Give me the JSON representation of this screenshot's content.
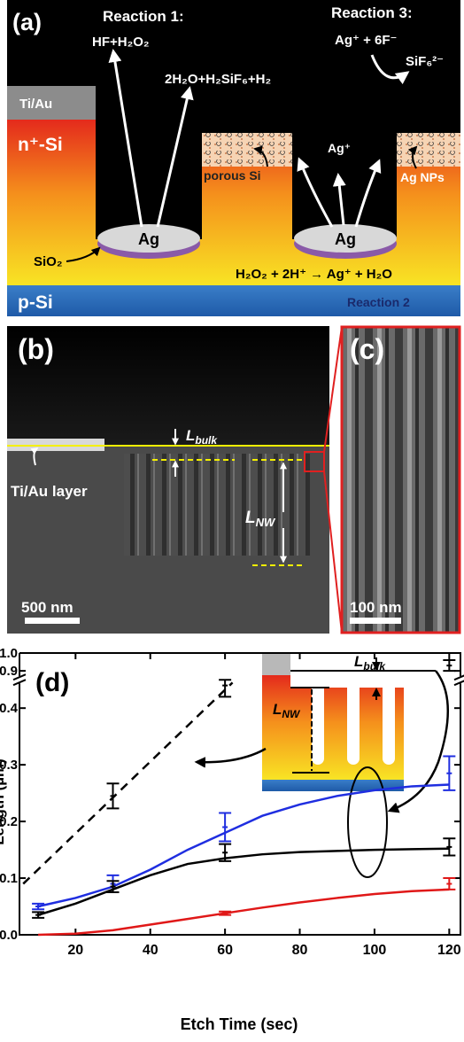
{
  "panel_a": {
    "label": "(a)",
    "reaction1_title": "Reaction 1:",
    "reaction1_in": "HF+H₂O₂",
    "reaction1_out": "2H₂O+H₂SiF₆+H₂",
    "reaction3_title": "Reaction 3:",
    "reaction3_in": "Ag⁺ + 6F⁻",
    "reaction3_out": "SiF₆²⁻",
    "tiau": "Ti/Au",
    "nsi": "n⁺-Si",
    "porous": "porous Si",
    "agplus": "Ag⁺",
    "agnps": "Ag NPs",
    "ag_left": "Ag",
    "ag_right": "Ag",
    "sio2": "SiO₂",
    "reaction2_eq": "H₂O₂ + 2H⁺ → Ag⁺ + H₂O",
    "reaction2_title": "Reaction 2",
    "psi": "p-Si"
  },
  "panel_b": {
    "label": "(b)",
    "lbulk": {
      "main": "L",
      "sub": "bulk"
    },
    "tiau_layer": "Ti/Au layer",
    "lnw": {
      "main": "L",
      "sub": "NW"
    },
    "scale": "500 nm"
  },
  "panel_c": {
    "label": "(c)",
    "scale": "100 nm"
  },
  "chart_data": {
    "type": "line",
    "panel_label": "(d)",
    "x_label": "Etch Time (sec)",
    "y_label": "Length (µm)",
    "xlim": [
      5,
      123
    ],
    "xticks": [
      20,
      40,
      60,
      80,
      100,
      120
    ],
    "ylim": [
      0,
      1.0
    ],
    "y_break": [
      0.45,
      0.85
    ],
    "yticks": [
      {
        "value": 0,
        "label": "0.0"
      },
      0.1,
      0.2,
      0.3,
      0.4,
      0.9,
      {
        "value": 1.0,
        "label": "1.0"
      }
    ],
    "inset": {
      "lbulk": {
        "main": "L",
        "sub": "bulk"
      },
      "lnw": {
        "main": "L",
        "sub": "NW"
      }
    },
    "series": [
      {
        "color": "#000000",
        "dash": true,
        "x": [
          30,
          60,
          120
        ],
        "values": [
          0.245,
          0.44,
          0.93
        ],
        "errors": [
          0.022,
          0.02,
          0.03
        ],
        "fit_x": [
          6,
          62
        ],
        "fit": [
          0.09,
          0.445
        ]
      },
      {
        "color": "#1f2ee0",
        "dash": false,
        "x": [
          10,
          30,
          60,
          120
        ],
        "values": [
          0.05,
          0.09,
          0.19,
          0.285
        ],
        "errors": [
          0.005,
          0.015,
          0.025,
          0.03
        ],
        "fit_x": [
          10,
          20,
          30,
          40,
          50,
          60,
          70,
          80,
          90,
          100,
          110,
          120
        ],
        "fit": [
          0.05,
          0.065,
          0.085,
          0.115,
          0.15,
          0.18,
          0.21,
          0.23,
          0.245,
          0.255,
          0.262,
          0.265
        ]
      },
      {
        "color": "#000000",
        "dash": false,
        "x": [
          10,
          30,
          60,
          120
        ],
        "values": [
          0.035,
          0.085,
          0.145,
          0.155
        ],
        "errors": [
          0.005,
          0.01,
          0.015,
          0.015
        ],
        "fit_x": [
          10,
          20,
          30,
          40,
          50,
          60,
          70,
          80,
          90,
          100,
          110,
          120
        ],
        "fit": [
          0.035,
          0.055,
          0.08,
          0.105,
          0.125,
          0.135,
          0.142,
          0.146,
          0.148,
          0.15,
          0.151,
          0.152
        ]
      },
      {
        "color": "#e01818",
        "dash": false,
        "x": [
          60,
          120
        ],
        "values": [
          0.038,
          0.09
        ],
        "errors": [
          0.003,
          0.01
        ],
        "fit_x": [
          10,
          20,
          30,
          40,
          50,
          60,
          70,
          80,
          90,
          100,
          110,
          120
        ],
        "fit": [
          0,
          0.002,
          0.008,
          0.018,
          0.028,
          0.038,
          0.048,
          0.057,
          0.065,
          0.072,
          0.077,
          0.08
        ]
      }
    ]
  }
}
